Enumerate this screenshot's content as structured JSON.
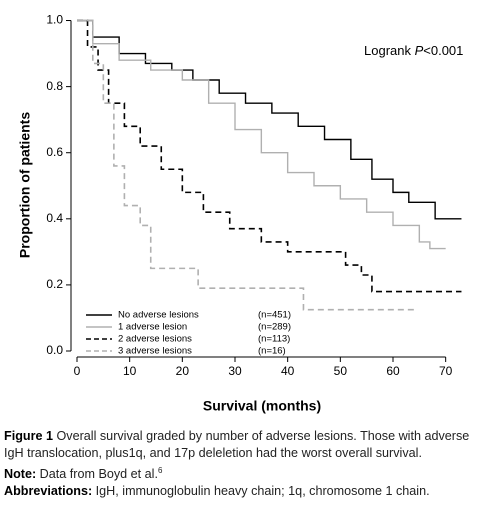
{
  "chart_data": {
    "type": "step",
    "xlabel": "Survival (months)",
    "ylabel": "Proportion of patients",
    "annotation": {
      "prefix": "Logrank ",
      "italic": "P",
      "suffix": "<0.001"
    },
    "xlim": [
      0,
      75
    ],
    "xticks": [
      0,
      10,
      20,
      30,
      40,
      50,
      60,
      70
    ],
    "ylim": [
      0,
      1.05
    ],
    "yticks": [
      {
        "value": 0,
        "label": "0.0"
      },
      0.2,
      0.4,
      0.6,
      0.8,
      {
        "value": 1,
        "label": "1.0"
      }
    ],
    "series": [
      {
        "name": "No adverse lesions",
        "note": "(n=451)",
        "color": "#000000",
        "dash": false,
        "x": [
          0,
          3,
          8,
          13,
          18,
          22,
          27,
          32,
          37,
          42,
          47,
          52,
          56,
          60,
          63,
          68,
          73
        ],
        "values": [
          1.0,
          0.95,
          0.9,
          0.87,
          0.85,
          0.82,
          0.78,
          0.75,
          0.72,
          0.68,
          0.64,
          0.58,
          0.52,
          0.48,
          0.45,
          0.4,
          0.4
        ]
      },
      {
        "name": "1 adverse lesion",
        "note": "(n=289)",
        "color": "#b0b0b0",
        "dash": false,
        "x": [
          0,
          3,
          8,
          14,
          20,
          25,
          30,
          35,
          40,
          45,
          50,
          55,
          60,
          65,
          67,
          70
        ],
        "values": [
          1.0,
          0.93,
          0.88,
          0.85,
          0.82,
          0.75,
          0.67,
          0.6,
          0.54,
          0.5,
          0.46,
          0.42,
          0.38,
          0.33,
          0.31,
          0.31
        ]
      },
      {
        "name": "2 adverse lesions",
        "note": "(n=113)",
        "color": "#000000",
        "dash": true,
        "x": [
          0,
          2,
          4,
          6,
          9,
          12,
          16,
          20,
          24,
          29,
          35,
          40,
          48,
          51,
          54,
          56,
          73
        ],
        "values": [
          1.0,
          0.92,
          0.85,
          0.75,
          0.68,
          0.62,
          0.55,
          0.48,
          0.42,
          0.37,
          0.33,
          0.3,
          0.3,
          0.26,
          0.23,
          0.18,
          0.18
        ]
      },
      {
        "name": "3 adverse lesions",
        "note": "(n=16)",
        "color": "#b0b0b0",
        "dash": true,
        "x": [
          0,
          3,
          5,
          7,
          9,
          12,
          14,
          18,
          23,
          43,
          64
        ],
        "values": [
          1.0,
          0.87,
          0.75,
          0.56,
          0.44,
          0.38,
          0.25,
          0.25,
          0.19,
          0.125,
          0.125
        ]
      }
    ]
  },
  "caption": {
    "figure": "Figure 1",
    "text": " Overall survival graded by number of adverse lesions. Those with adverse IgH translocation, plus1q, and 17p deleletion had the worst overall survival.",
    "note_label": "Note:",
    "note_text": " Data from Boyd et al.",
    "note_ref": "6",
    "abbr_label": "Abbreviations:",
    "abbr_text": " IgH, immunoglobulin heavy chain; 1q, chromosome 1 chain."
  }
}
